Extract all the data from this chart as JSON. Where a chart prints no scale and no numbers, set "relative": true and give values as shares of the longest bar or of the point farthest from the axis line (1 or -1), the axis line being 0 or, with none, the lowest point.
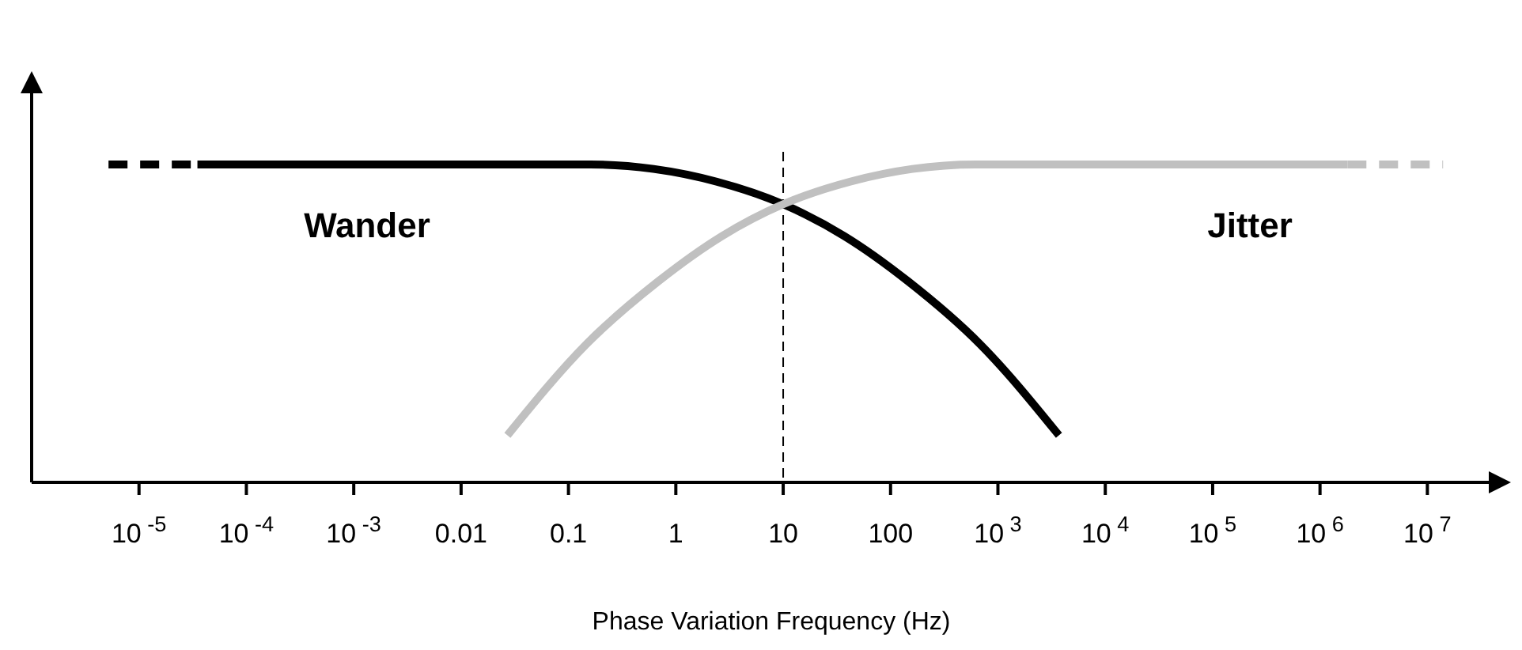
{
  "chart_data": {
    "type": "line",
    "xlabel": "Phase Variation Frequency (Hz)",
    "relative": true,
    "log": "x",
    "xlim": [
      1e-06,
      60000000.0
    ],
    "xticks": [
      {
        "value": 1e-05,
        "label": "10$^{-5}$"
      },
      {
        "value": 0.0001,
        "label": "10$^{-4}$"
      },
      {
        "value": 0.001,
        "label": "10$^{-3}$"
      },
      0.01,
      0.1,
      1,
      10,
      100,
      {
        "value": 1000,
        "label": "10$^{3}$"
      },
      {
        "value": 10000,
        "label": "10$^{4}$"
      },
      {
        "value": 100000,
        "label": "10$^{5}$"
      },
      {
        "value": 1000000,
        "label": "10$^{6}$"
      },
      {
        "value": 10000000,
        "label": "10$^{7}$"
      }
    ],
    "series": [
      {
        "name": "Wander",
        "color": "#000000",
        "line_style": "solid",
        "x": [
          3.5e-05,
          0.16,
          0.62,
          2.4,
          10,
          37,
          145,
          690,
          3700
        ],
        "values": [
          1,
          1,
          0.986,
          0.946,
          0.875,
          0.775,
          0.633,
          0.433,
          0.148
        ]
      },
      {
        "color": "#000000",
        "line_style": "dashed",
        "x": [
          5.2e-06,
          3.5e-05
        ],
        "values": [
          1,
          1
        ]
      },
      {
        "name": "Jitter",
        "color": "#c0c0c0",
        "line_style": "solid",
        "x": [
          0.027,
          0.145,
          0.69,
          2.7,
          10,
          42,
          160,
          620,
          1800000
        ],
        "values": [
          0.148,
          0.433,
          0.633,
          0.775,
          0.875,
          0.946,
          0.986,
          1,
          1
        ]
      },
      {
        "color": "#c0c0c0",
        "line_style": "dashed",
        "x": [
          1800000,
          14000000
        ],
        "values": [
          1,
          1
        ]
      }
    ],
    "ref_lines": [
      {
        "axis": "x",
        "value": 10,
        "color": "#000000",
        "line_style": "dashed"
      }
    ],
    "grid": false
  }
}
